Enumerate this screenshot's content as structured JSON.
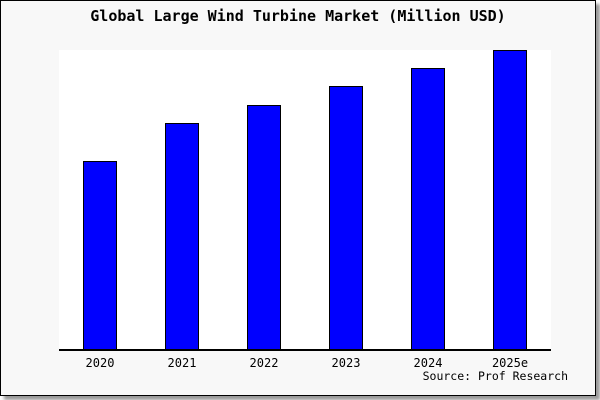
{
  "figure": {
    "title": "Global Large Wind Turbine Market (Million USD)",
    "source": "Source: Prof Research"
  },
  "colors": {
    "bar_fill": "#0000ff",
    "bar_border": "#000000",
    "figure_bg": "#f8f8f8",
    "plot_bg": "#ffffff",
    "axis": "#000000",
    "text": "#000000",
    "shadow": "#999999"
  },
  "chart_data": {
    "type": "bar",
    "title": "Global Large Wind Turbine Market (Million USD)",
    "categories": [
      "2020",
      "2021",
      "2022",
      "2023",
      "2024",
      "2025e"
    ],
    "values": [
      63,
      75.7,
      81.7,
      88,
      94,
      100
    ],
    "value_units": "relative (no y-axis labels or gridlines shown; values estimated as percent of tallest bar)",
    "xlabel": "",
    "ylabel": "",
    "ylim": [
      0,
      100
    ],
    "grid": false,
    "legend": null,
    "y_axis_visible": false,
    "source": "Source: Prof Research"
  }
}
